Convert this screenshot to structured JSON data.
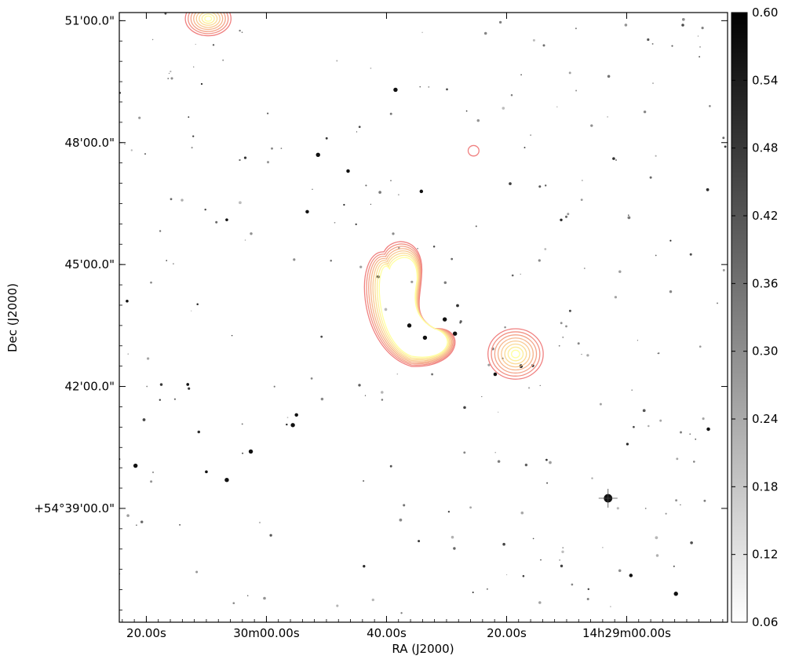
{
  "chart_data": {
    "type": "heatmap",
    "xlabel": "RA (J2000)",
    "ylabel": "Dec (J2000)",
    "x_ticks": [
      {
        "value": 1400,
        "label": "20.00s"
      },
      {
        "value": 1380,
        "label": "30m00.00s"
      },
      {
        "value": 1360,
        "label": "40.00s"
      },
      {
        "value": 1340,
        "label": "20.00s"
      },
      {
        "value": 1320,
        "label": "14h29m00.00s"
      }
    ],
    "xlim": [
      1404.5,
      1303.2
    ],
    "y_ticks": [
      {
        "value": 51,
        "label": "51'00.0\""
      },
      {
        "value": 48,
        "label": "48'00.0\""
      },
      {
        "value": 45,
        "label": "45'00.0\""
      },
      {
        "value": 42,
        "label": "42'00.0\""
      },
      {
        "value": 39,
        "label": "+54°39'00.0\""
      }
    ],
    "ylim": [
      36.2,
      51.2
    ],
    "colorbar": {
      "ticks": [
        0.06,
        0.12,
        0.18,
        0.24,
        0.3,
        0.36,
        0.42,
        0.48,
        0.54,
        0.6
      ],
      "tick_labels": [
        "0.06",
        "0.12",
        "0.18",
        "0.24",
        "0.30",
        "0.36",
        "0.42",
        "0.48",
        "0.54",
        "0.60"
      ],
      "range": [
        0.06,
        0.6
      ],
      "colormap": "gray_r"
    },
    "contours": {
      "levels": 8,
      "color_low": "#f08080",
      "color_high": "#ffffa0",
      "sources": [
        {
          "name": "northern-lobe",
          "ra": 1389.7,
          "dec": 51.05,
          "rx": 3.8,
          "ry": 0.42
        },
        {
          "name": "central-arc",
          "ra": 1356.5,
          "dec": 44.0,
          "rx": 5.0,
          "ry": 1.5
        },
        {
          "name": "eastern-blob",
          "ra": 1338.5,
          "dec": 42.8,
          "rx": 4.6,
          "ry": 0.62
        },
        {
          "name": "small-knot",
          "ra": 1345.5,
          "dec": 47.8,
          "rx": 0.9,
          "ry": 0.13
        }
      ]
    },
    "stars": [
      {
        "ra": 1323.1,
        "dec": 39.25,
        "size": 6
      },
      {
        "ra": 1358.5,
        "dec": 49.3,
        "size": 3
      },
      {
        "ra": 1371.4,
        "dec": 47.7,
        "size": 3
      },
      {
        "ra": 1382.6,
        "dec": 40.4,
        "size": 3
      },
      {
        "ra": 1375.6,
        "dec": 41.05,
        "size": 3
      },
      {
        "ra": 1401.8,
        "dec": 40.05,
        "size": 3
      },
      {
        "ra": 1311.8,
        "dec": 36.9,
        "size": 3
      },
      {
        "ra": 1386.6,
        "dec": 39.7,
        "size": 3
      },
      {
        "ra": 1356.2,
        "dec": 43.5,
        "size": 3
      },
      {
        "ra": 1350.3,
        "dec": 43.65,
        "size": 3
      },
      {
        "ra": 1353.6,
        "dec": 43.2,
        "size": 3
      },
      {
        "ra": 1348.6,
        "dec": 43.3,
        "size": 3
      },
      {
        "ra": 1361.4,
        "dec": 44.7,
        "size": 2
      },
      {
        "ra": 1354.2,
        "dec": 46.8,
        "size": 2.5
      },
      {
        "ra": 1366.4,
        "dec": 47.3,
        "size": 2.5
      },
      {
        "ra": 1373.2,
        "dec": 46.3,
        "size": 2.5
      },
      {
        "ra": 1386.6,
        "dec": 46.1,
        "size": 2
      },
      {
        "ra": 1375.0,
        "dec": 41.3,
        "size": 2.5
      },
      {
        "ra": 1337.6,
        "dec": 42.5,
        "size": 2.5
      },
      {
        "ra": 1341.9,
        "dec": 42.3,
        "size": 2.5
      },
      {
        "ra": 1319.3,
        "dec": 37.35,
        "size": 2.5
      },
      {
        "ra": 1306.4,
        "dec": 40.95,
        "size": 2.5
      },
      {
        "ra": 1393.1,
        "dec": 42.05,
        "size": 2
      },
      {
        "ra": 1403.2,
        "dec": 44.1,
        "size": 2
      },
      {
        "ra": 1390.0,
        "dec": 39.9,
        "size": 2
      }
    ]
  }
}
